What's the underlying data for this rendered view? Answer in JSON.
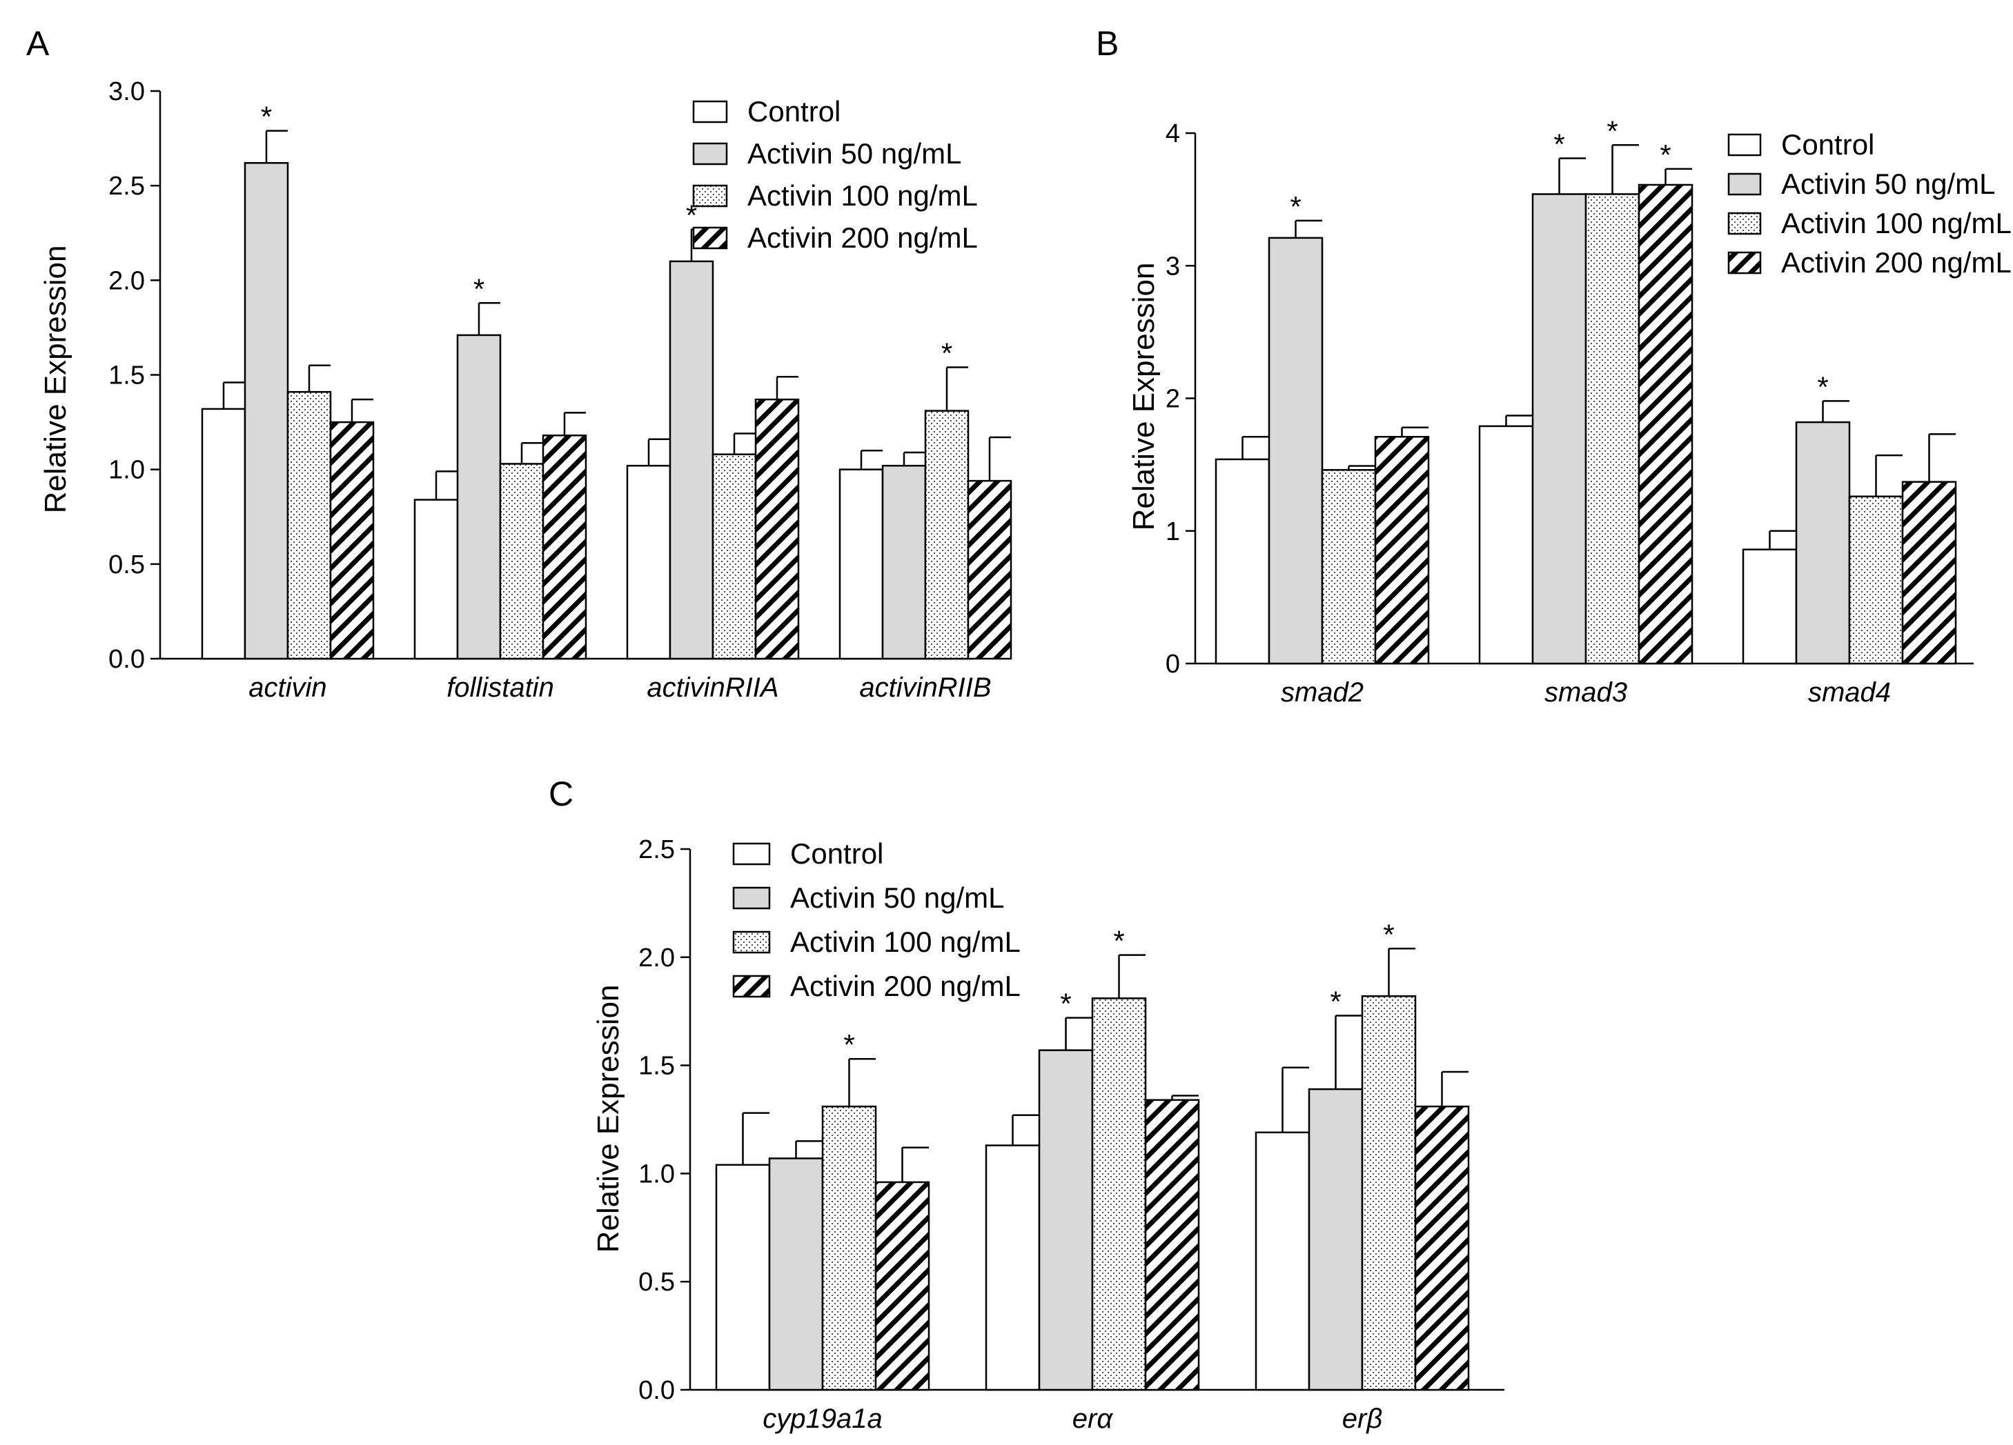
{
  "legend": [
    "Control",
    "Activin 50 ng/mL",
    "Activin 100 ng/mL",
    "Activin 200 ng/mL"
  ],
  "colors": {
    "control": "#ffffff",
    "activin50": "#d9d9d9",
    "axis": "#000000"
  },
  "chart_data": [
    {
      "panel": "A",
      "type": "bar",
      "ylabel": "Relative Expression",
      "ylim": [
        0,
        3.0
      ],
      "yticks": [
        "0.0",
        "0.5",
        "1.0",
        "1.5",
        "2.0",
        "2.5",
        "3.0"
      ],
      "categories": [
        "activin",
        "follistatin",
        "activinRIIA",
        "activinRIIB"
      ],
      "series": [
        {
          "name": "Control",
          "values": [
            1.32,
            0.84,
            1.02,
            1.0
          ],
          "errors": [
            0.14,
            0.15,
            0.14,
            0.1
          ],
          "significant": [
            false,
            false,
            false,
            false
          ]
        },
        {
          "name": "Activin 50 ng/mL",
          "values": [
            2.62,
            1.71,
            2.1,
            1.02
          ],
          "errors": [
            0.17,
            0.17,
            0.17,
            0.07
          ],
          "significant": [
            true,
            true,
            true,
            false
          ]
        },
        {
          "name": "Activin 100 ng/mL",
          "values": [
            1.41,
            1.03,
            1.08,
            1.31
          ],
          "errors": [
            0.14,
            0.11,
            0.11,
            0.23
          ],
          "significant": [
            false,
            false,
            false,
            true
          ]
        },
        {
          "name": "Activin 200 ng/mL",
          "values": [
            1.25,
            1.18,
            1.37,
            0.94
          ],
          "errors": [
            0.12,
            0.12,
            0.12,
            0.23
          ],
          "significant": [
            false,
            false,
            false,
            false
          ]
        }
      ],
      "legend_position": "top-right"
    },
    {
      "panel": "B",
      "type": "bar",
      "ylabel": "Relative Expression",
      "ylim": [
        0,
        4
      ],
      "yticks": [
        "0",
        "1",
        "2",
        "3",
        "4"
      ],
      "categories": [
        "smad2",
        "smad3",
        "smad4"
      ],
      "series": [
        {
          "name": "Control",
          "values": [
            1.54,
            1.79,
            0.86
          ],
          "errors": [
            0.17,
            0.08,
            0.14
          ],
          "significant": [
            false,
            false,
            false
          ]
        },
        {
          "name": "Activin 50 ng/mL",
          "values": [
            3.21,
            3.54,
            1.82
          ],
          "errors": [
            0.13,
            0.27,
            0.16
          ],
          "significant": [
            true,
            true,
            true
          ]
        },
        {
          "name": "Activin 100 ng/mL",
          "values": [
            1.46,
            3.54,
            1.26
          ],
          "errors": [
            0.03,
            0.37,
            0.31
          ],
          "significant": [
            false,
            true,
            false
          ]
        },
        {
          "name": "Activin 200 ng/mL",
          "values": [
            1.71,
            3.61,
            1.37
          ],
          "errors": [
            0.07,
            0.12,
            0.36
          ],
          "significant": [
            false,
            true,
            false
          ]
        }
      ],
      "legend_position": "top-right"
    },
    {
      "panel": "C",
      "type": "bar",
      "ylabel": "Relative Expression",
      "ylim": [
        0,
        2.5
      ],
      "yticks": [
        "0.0",
        "0.5",
        "1.0",
        "1.5",
        "2.0",
        "2.5"
      ],
      "categories": [
        "cyp19a1a",
        "erα",
        "erβ"
      ],
      "series": [
        {
          "name": "Control",
          "values": [
            1.04,
            1.13,
            1.19
          ],
          "errors": [
            0.24,
            0.14,
            0.3
          ],
          "significant": [
            false,
            false,
            false
          ]
        },
        {
          "name": "Activin 50 ng/mL",
          "values": [
            1.07,
            1.57,
            1.39
          ],
          "errors": [
            0.08,
            0.15,
            0.34
          ],
          "significant": [
            false,
            true,
            true
          ]
        },
        {
          "name": "Activin 100 ng/mL",
          "values": [
            1.31,
            1.81,
            1.82
          ],
          "errors": [
            0.22,
            0.2,
            0.22
          ],
          "significant": [
            true,
            true,
            true
          ]
        },
        {
          "name": "Activin 200 ng/mL",
          "values": [
            0.96,
            1.34,
            1.31
          ],
          "errors": [
            0.16,
            0.02,
            0.16
          ],
          "significant": [
            false,
            false,
            false
          ]
        }
      ],
      "legend_position": "top-left"
    }
  ]
}
